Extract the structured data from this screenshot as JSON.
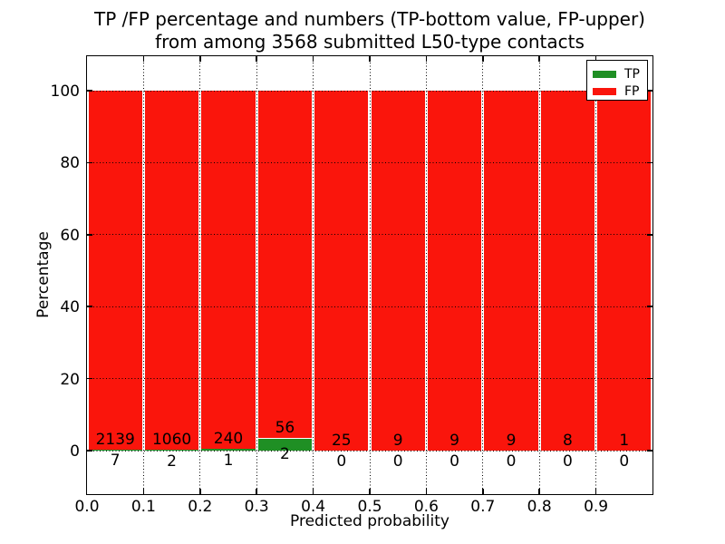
{
  "figure": {
    "title_line1": "TP /FP percentage and numbers (TP-bottom value, FP-upper)",
    "title_line2": "from among 3568 submitted L50-type contacts",
    "background": "#ffffff"
  },
  "chart_data": {
    "type": "bar",
    "stacked": true,
    "title": "TP /FP percentage and numbers (TP-bottom value, FP-upper) from among 3568 submitted L50-type contacts",
    "xlabel": "Predicted probability",
    "ylabel": "Percentage",
    "x_range": [
      0.0,
      1.0
    ],
    "bin_width": 0.1,
    "categories": [
      "0.0-0.1",
      "0.1-0.2",
      "0.2-0.3",
      "0.3-0.4",
      "0.4-0.5",
      "0.5-0.6",
      "0.6-0.7",
      "0.7-0.8",
      "0.8-0.9",
      "0.9-1.0"
    ],
    "series": [
      {
        "name": "TP",
        "color": "#1f8f24",
        "counts": [
          7,
          2,
          1,
          2,
          0,
          0,
          0,
          0,
          0,
          0
        ]
      },
      {
        "name": "FP",
        "color": "#fa150c",
        "counts": [
          2139,
          1060,
          240,
          56,
          25,
          9,
          9,
          9,
          8,
          1
        ]
      }
    ],
    "values_unit": "percent of bin total (TP+FP stacked to 100%)",
    "total_submitted": 3568,
    "x_tick_labels": [
      "0.0",
      "0.1",
      "0.2",
      "0.3",
      "0.4",
      "0.5",
      "0.6",
      "0.7",
      "0.8",
      "0.9"
    ],
    "y_ticks": [
      0,
      20,
      40,
      60,
      80,
      100
    ],
    "ylim": [
      -12,
      110
    ],
    "grid": "dotted",
    "grid_color": "#000000",
    "legend_position": "upper right"
  },
  "legend": {
    "items": [
      {
        "label": "TP",
        "color": "#1f8f24"
      },
      {
        "label": "FP",
        "color": "#fa150c"
      }
    ]
  }
}
